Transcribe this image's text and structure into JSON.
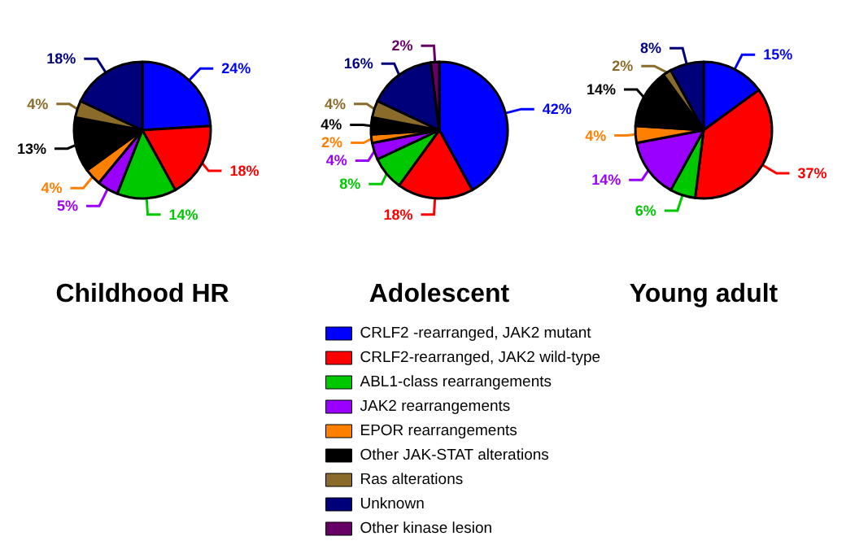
{
  "chart_data": [
    {
      "type": "pie",
      "title": "Childhood HR",
      "categories": [
        null,
        null,
        null,
        null,
        null,
        null,
        null,
        null,
        null
      ],
      "values": [
        24,
        18,
        14,
        5,
        4,
        13,
        4,
        18,
        null
      ],
      "value_labels": [
        "24%",
        "18%",
        "14%",
        "5%",
        "4%",
        "13%",
        "4%",
        "18%",
        null
      ],
      "colors": [
        "#0000ff",
        "#ff0000",
        "#00c800",
        "#9900ff",
        "#ff8000",
        "#000000",
        "#8b6b2a",
        "#00007a",
        "#660066"
      ],
      "legend": false
    },
    {
      "type": "pie",
      "title": "Adolescent",
      "categories": [
        "CRLF2 -rearranged, JAK2 mutant",
        "CRLF2-rearranged, JAK2 wild-type",
        "ABL1-class rearrangements",
        "JAK2 rearrangements",
        "EPOR rearrangements",
        "Other JAK-STAT alterations",
        "Ras alterations",
        "Unknown",
        "Other kinase lesion"
      ],
      "values": [
        42,
        18,
        8,
        4,
        2,
        4,
        4,
        16,
        2
      ],
      "value_labels": [
        "42%",
        "18%",
        "8%",
        "4%",
        "2%",
        "4%",
        "4%",
        "16%",
        "2%"
      ],
      "colors": [
        "#0000ff",
        "#ff0000",
        "#00c800",
        "#9900ff",
        "#ff8000",
        "#000000",
        "#8b6b2a",
        "#00007a",
        "#660066"
      ],
      "legend": "bottom"
    },
    {
      "type": "pie",
      "title": "Young adult",
      "categories": [
        null,
        null,
        null,
        null,
        null,
        null,
        null,
        null,
        null
      ],
      "values": [
        15,
        37,
        6,
        14,
        4,
        14,
        2,
        8,
        null
      ],
      "value_labels": [
        "15%",
        "37%",
        "6%",
        "14%",
        "4%",
        "14%",
        "2%",
        "8%",
        null
      ],
      "colors": [
        "#0000ff",
        "#ff0000",
        "#00c800",
        "#9900ff",
        "#ff8000",
        "#000000",
        "#8b6b2a",
        "#00007a",
        "#660066"
      ],
      "legend": false
    }
  ]
}
